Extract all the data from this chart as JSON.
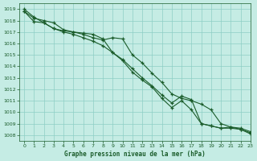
{
  "title": "Graphe pression niveau de la mer (hPa)",
  "xlim": [
    -0.5,
    23
  ],
  "ylim": [
    1007.5,
    1019.5
  ],
  "xticks": [
    0,
    1,
    2,
    3,
    4,
    5,
    6,
    7,
    8,
    9,
    10,
    11,
    12,
    13,
    14,
    15,
    16,
    17,
    18,
    19,
    20,
    21,
    22,
    23
  ],
  "yticks": [
    1008,
    1009,
    1010,
    1011,
    1012,
    1013,
    1014,
    1015,
    1016,
    1017,
    1018,
    1019
  ],
  "background_color": "#c5ece4",
  "grid_color": "#8ecec5",
  "line_color": "#1a5c2a",
  "series": [
    [
      1019.0,
      1018.3,
      1017.8,
      1017.3,
      1017.0,
      1016.8,
      1016.5,
      1016.2,
      1015.8,
      1015.2,
      1014.6,
      1013.8,
      1013.0,
      1012.3,
      1011.5,
      1010.8,
      1011.4,
      1011.1,
      1009.0,
      1008.8,
      1008.6,
      1008.7,
      1008.5,
      1008.2
    ],
    [
      1018.8,
      1018.2,
      1018.0,
      1017.8,
      1017.2,
      1017.0,
      1016.8,
      1016.5,
      1016.3,
      1016.5,
      1016.4,
      1015.0,
      1014.3,
      1013.4,
      1012.6,
      1011.6,
      1011.2,
      1011.0,
      1010.7,
      1010.2,
      1009.0,
      1008.7,
      1008.6,
      1008.3
    ],
    [
      1018.8,
      1017.9,
      1017.8,
      1017.3,
      1017.1,
      1017.0,
      1016.9,
      1016.8,
      1016.4,
      1015.2,
      1014.5,
      1013.5,
      1012.8,
      1012.2,
      1011.2,
      1010.4,
      1011.0,
      1010.2,
      1009.0,
      1008.8,
      1008.6,
      1008.6,
      1008.5,
      1008.1
    ]
  ]
}
